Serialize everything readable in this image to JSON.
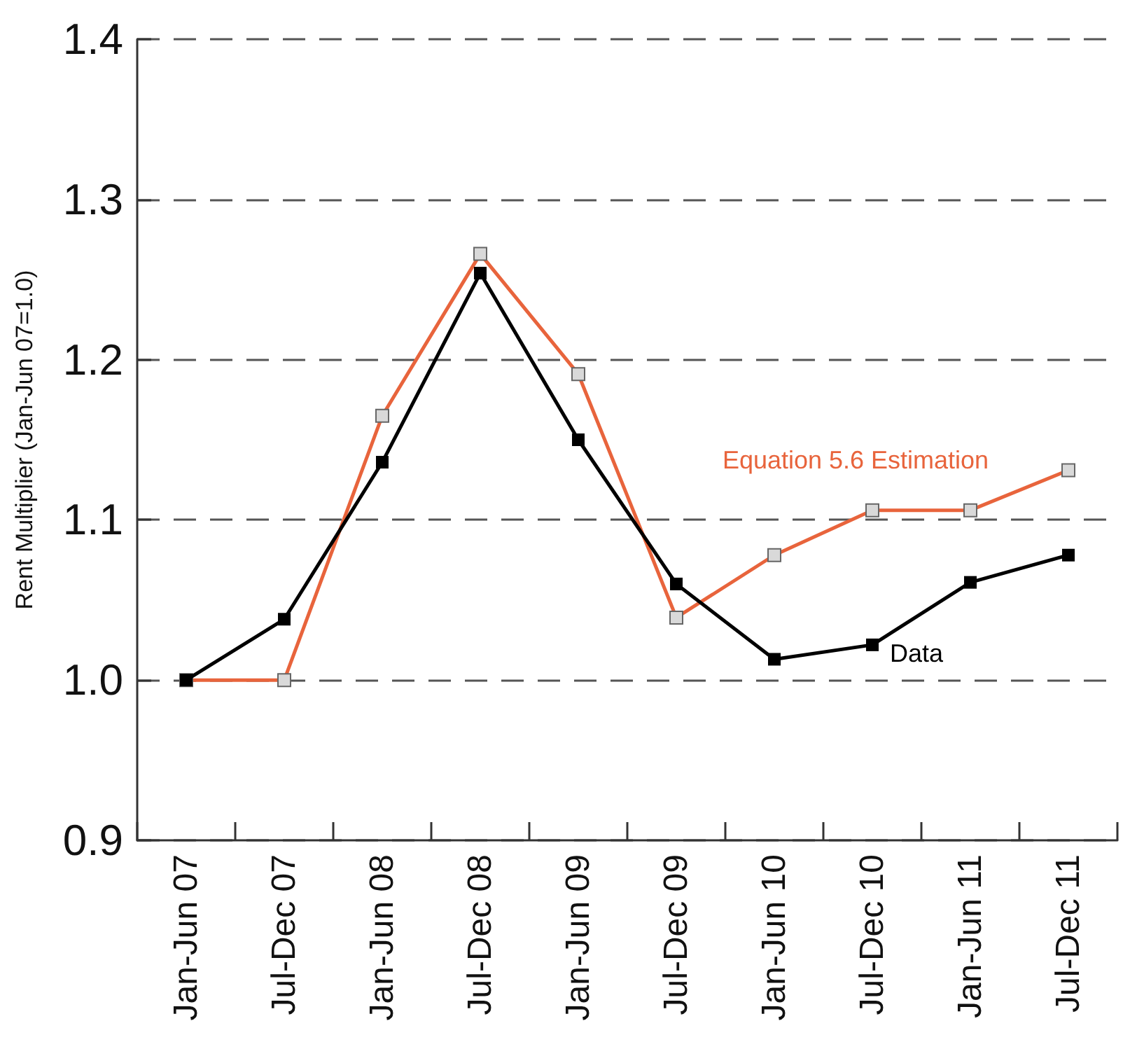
{
  "chart_data": {
    "type": "line",
    "ylabel": "Rent Multiplier (Jan-Jun 07=1.0)",
    "categories": [
      "Jan-Jun 07",
      "Jul-Dec 07",
      "Jan-Jun 08",
      "Jul-Dec 08",
      "Jan-Jun 09",
      "Jul-Dec 09",
      "Jan-Jun 10",
      "Jul-Dec 10",
      "Jan-Jun 11",
      "Jul-Dec 11"
    ],
    "series": [
      {
        "name": "Equation 5.6 Estimation",
        "color": "#e8643c",
        "values": [
          1.0,
          1.0,
          1.165,
          1.266,
          1.191,
          1.039,
          1.078,
          1.106,
          1.106,
          1.131
        ]
      },
      {
        "name": "Data",
        "color": "#000000",
        "values": [
          1.0,
          1.038,
          1.136,
          1.254,
          1.15,
          1.06,
          1.013,
          1.022,
          1.061,
          1.078
        ]
      }
    ],
    "ylim": [
      0.9,
      1.4
    ],
    "yticks": [
      0.9,
      {
        "value": 1,
        "label": "1.0"
      },
      1.1,
      1.2,
      1.3,
      1.4
    ],
    "grid": "y",
    "legend": false,
    "marker": "square"
  }
}
